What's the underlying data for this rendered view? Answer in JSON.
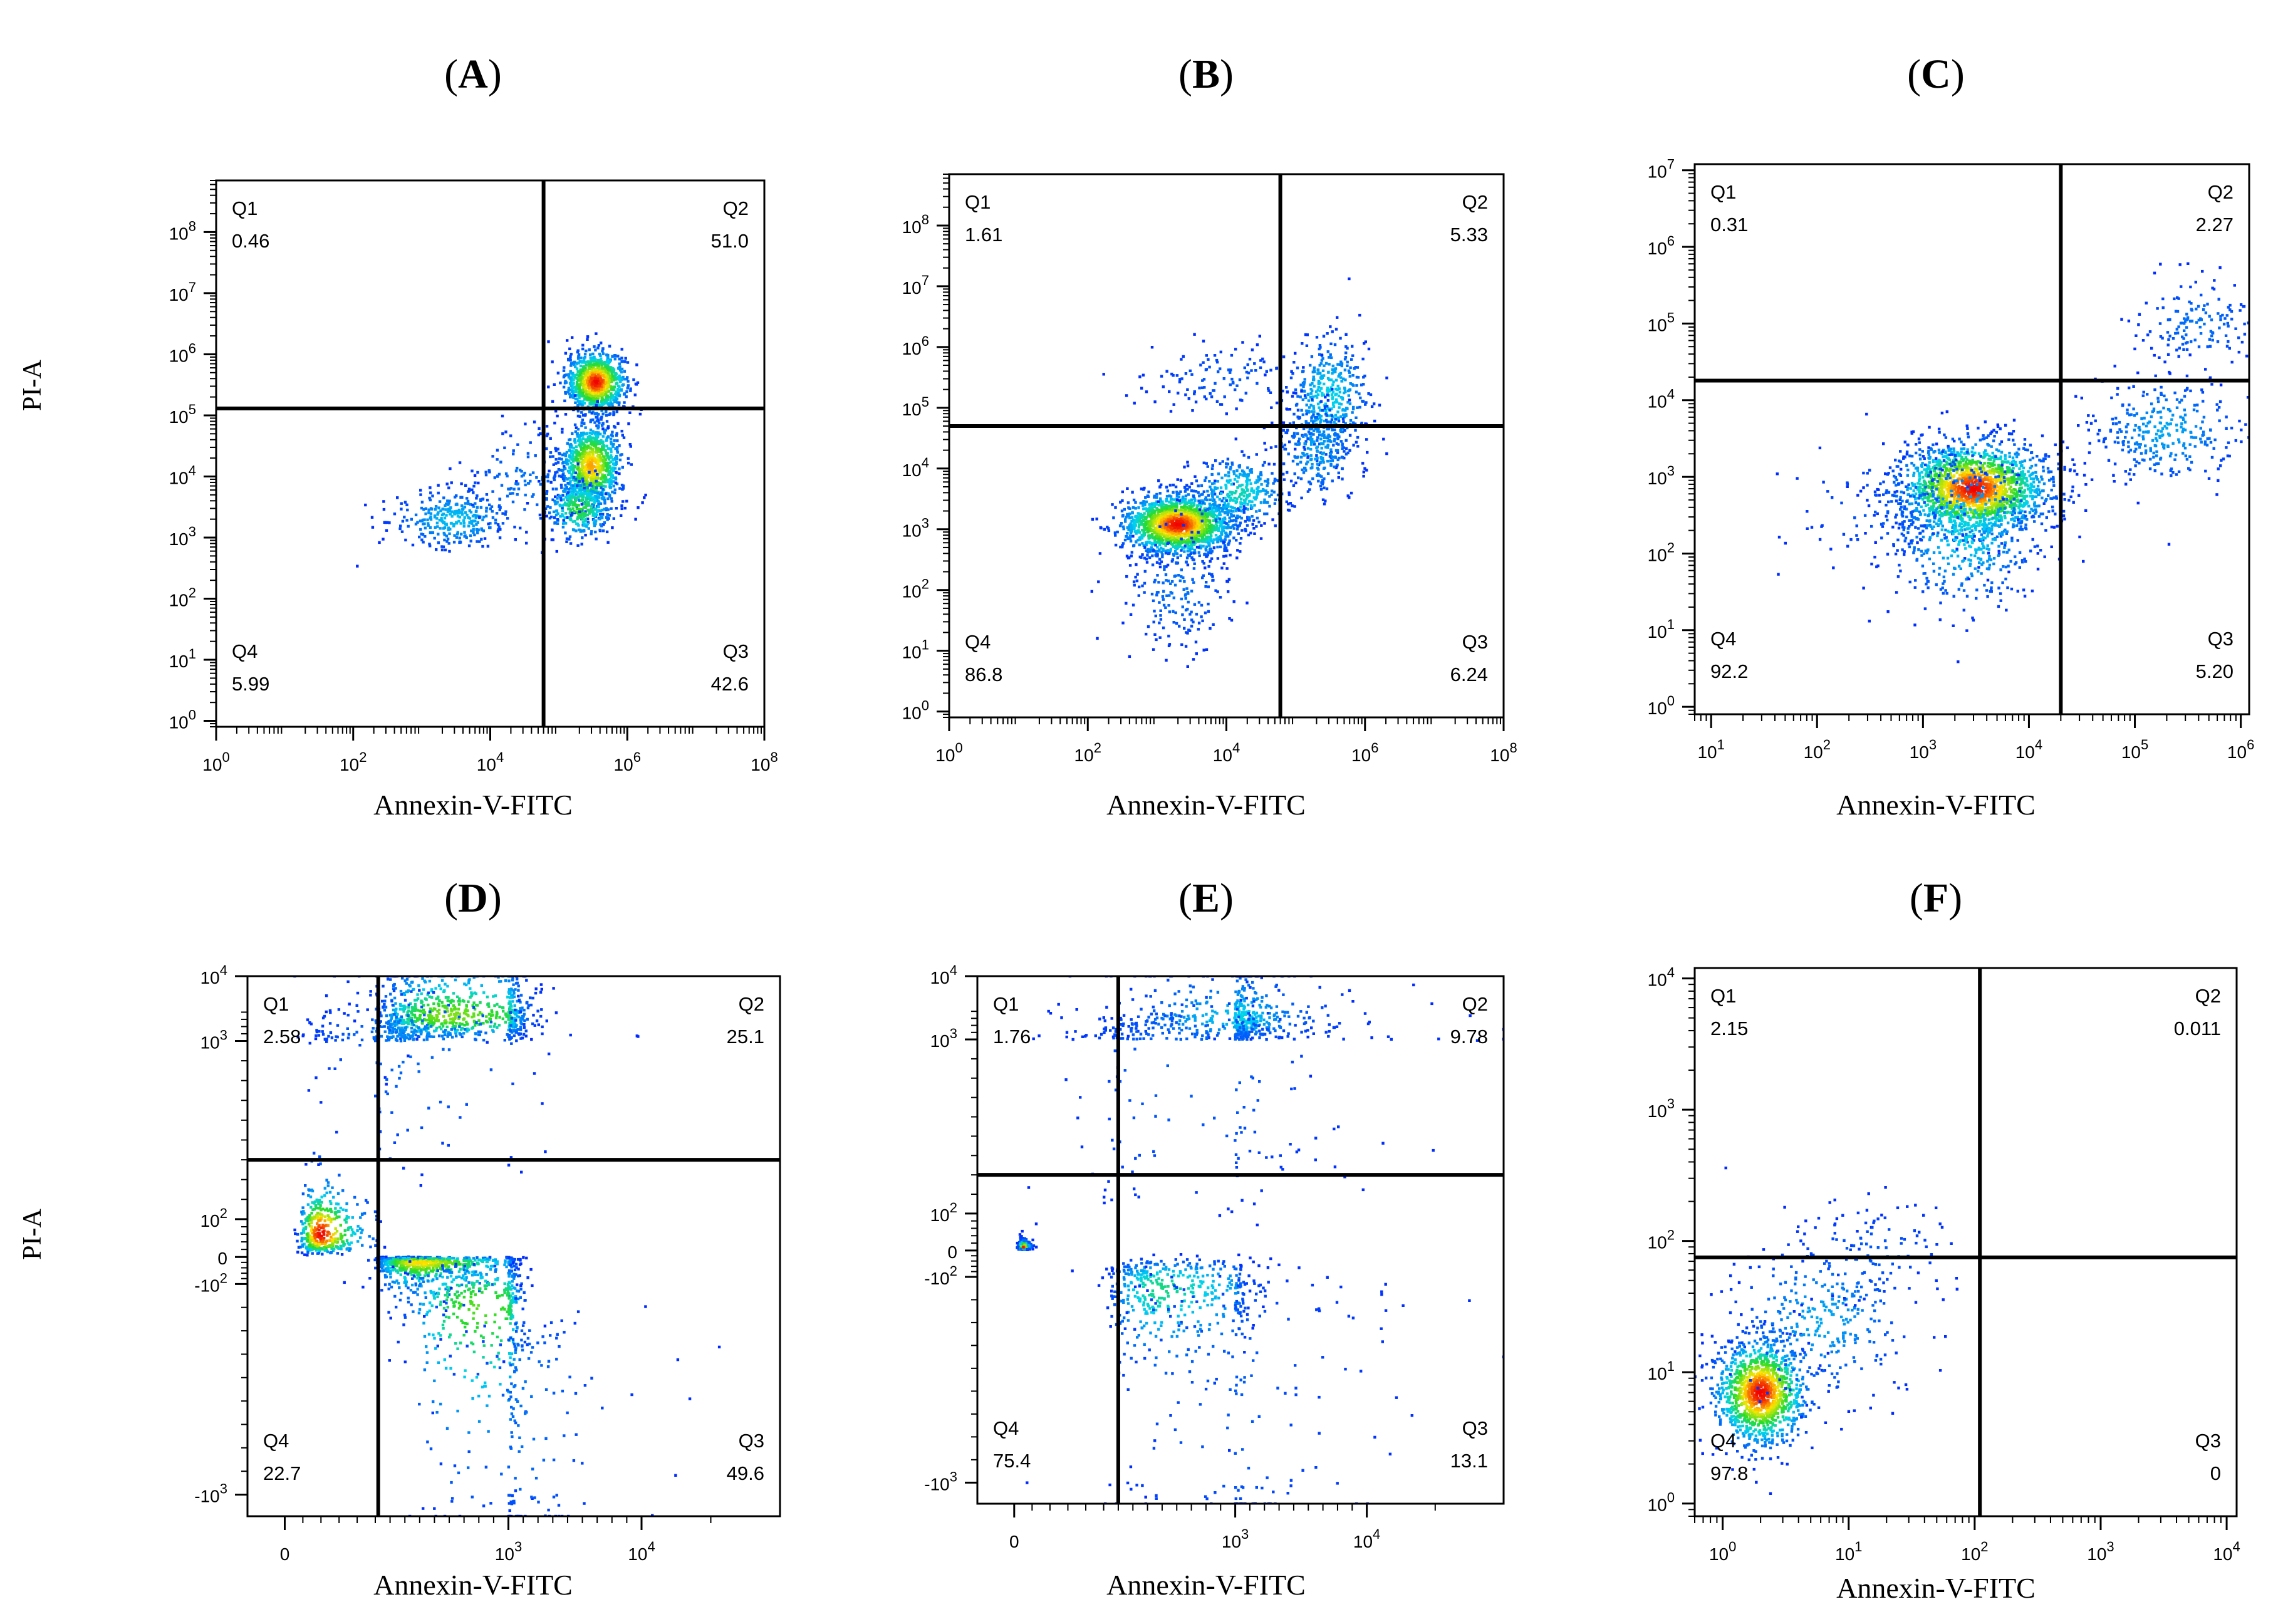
{
  "figure": {
    "shared_x_label": "Annexin-V-FITC",
    "shared_y_label": "PI-A"
  },
  "chart_data": [
    {
      "id": "A",
      "type": "scatter",
      "title": "(A)",
      "title_letter": "A",
      "xlabel": "Annexin-V-FITC",
      "ylabel": "PI-A",
      "x_scale": "log",
      "y_scale": "log",
      "xlim": [
        1,
        100000000
      ],
      "ylim": [
        0.8,
        700000000
      ],
      "x_ticks": [
        {
          "v": 1,
          "m": "10",
          "e": "0"
        },
        {
          "v": 100,
          "m": "10",
          "e": "2"
        },
        {
          "v": 10000,
          "m": "10",
          "e": "4"
        },
        {
          "v": 1000000,
          "m": "10",
          "e": "6"
        },
        {
          "v": 100000000,
          "m": "10",
          "e": "8"
        }
      ],
      "y_ticks": [
        {
          "v": 1,
          "m": "10",
          "e": "0"
        },
        {
          "v": 10,
          "m": "10",
          "e": "1"
        },
        {
          "v": 100,
          "m": "10",
          "e": "2"
        },
        {
          "v": 1000,
          "m": "10",
          "e": "3"
        },
        {
          "v": 10000,
          "m": "10",
          "e": "4"
        },
        {
          "v": 100000,
          "m": "10",
          "e": "5"
        },
        {
          "v": 1000000,
          "m": "10",
          "e": "6"
        },
        {
          "v": 10000000,
          "m": "10",
          "e": "7"
        },
        {
          "v": 100000000,
          "m": "10",
          "e": "8"
        }
      ],
      "gate": {
        "x": 60000,
        "y": 130000
      },
      "quadrants": [
        {
          "name": "Q1",
          "value": "0.46"
        },
        {
          "name": "Q2",
          "value": "51.0"
        },
        {
          "name": "Q3",
          "value": "42.6"
        },
        {
          "name": "Q4",
          "value": "5.99"
        }
      ],
      "clusters": [
        {
          "x": 350000,
          "y": 350000,
          "sx": 0.22,
          "sy": 0.25,
          "n": 900,
          "d": 1.0
        },
        {
          "x": 300000,
          "y": 15000,
          "sx": 0.22,
          "sy": 0.35,
          "n": 900,
          "d": 0.85
        },
        {
          "x": 200000,
          "y": 3000,
          "sx": 0.25,
          "sy": 0.25,
          "n": 300,
          "d": 0.55
        },
        {
          "x": 3000,
          "y": 2000,
          "sx": 0.45,
          "sy": 0.25,
          "n": 300,
          "d": 0.3
        },
        {
          "x": 30000,
          "y": 8000,
          "sx": 0.5,
          "sy": 0.5,
          "n": 150,
          "d": 0.15
        }
      ]
    },
    {
      "id": "B",
      "type": "scatter",
      "title": "(B)",
      "title_letter": "B",
      "xlabel": "Annexin-V-FITC",
      "ylabel": "PI-A",
      "x_scale": "log",
      "y_scale": "log",
      "xlim": [
        1,
        100000000
      ],
      "ylim": [
        0.8,
        700000000
      ],
      "x_ticks": [
        {
          "v": 1,
          "m": "10",
          "e": "0"
        },
        {
          "v": 100,
          "m": "10",
          "e": "2"
        },
        {
          "v": 10000,
          "m": "10",
          "e": "4"
        },
        {
          "v": 1000000,
          "m": "10",
          "e": "6"
        },
        {
          "v": 100000000,
          "m": "10",
          "e": "8"
        }
      ],
      "y_ticks": [
        {
          "v": 1,
          "m": "10",
          "e": "0"
        },
        {
          "v": 10,
          "m": "10",
          "e": "1"
        },
        {
          "v": 100,
          "m": "10",
          "e": "2"
        },
        {
          "v": 1000,
          "m": "10",
          "e": "3"
        },
        {
          "v": 10000,
          "m": "10",
          "e": "4"
        },
        {
          "v": 100000,
          "m": "10",
          "e": "5"
        },
        {
          "v": 1000000,
          "m": "10",
          "e": "6"
        },
        {
          "v": 10000000,
          "m": "10",
          "e": "7"
        },
        {
          "v": 100000000,
          "m": "10",
          "e": "8"
        }
      ],
      "gate": {
        "x": 60000,
        "y": 50000
      },
      "quadrants": [
        {
          "name": "Q1",
          "value": "1.61"
        },
        {
          "name": "Q2",
          "value": "5.33"
        },
        {
          "name": "Q3",
          "value": "6.24"
        },
        {
          "name": "Q4",
          "value": "86.8"
        }
      ],
      "clusters": [
        {
          "x": 2000,
          "y": 1200,
          "sx": 0.4,
          "sy": 0.25,
          "n": 1600,
          "d": 1.0
        },
        {
          "x": 15000,
          "y": 4000,
          "sx": 0.35,
          "sy": 0.3,
          "n": 300,
          "d": 0.4
        },
        {
          "x": 300000,
          "y": 150000,
          "sx": 0.3,
          "sy": 0.5,
          "n": 400,
          "d": 0.35
        },
        {
          "x": 200000,
          "y": 20000,
          "sx": 0.3,
          "sy": 0.4,
          "n": 250,
          "d": 0.25
        },
        {
          "x": 2000,
          "y": 100,
          "sx": 0.4,
          "sy": 0.5,
          "n": 200,
          "d": 0.15
        },
        {
          "x": 10000,
          "y": 300000,
          "sx": 0.6,
          "sy": 0.3,
          "n": 120,
          "d": 0.1
        }
      ]
    },
    {
      "id": "C",
      "type": "scatter",
      "title": "(C)",
      "title_letter": "C",
      "xlabel": "Annexin-V-FITC",
      "ylabel": "PI-A",
      "x_scale": "log",
      "y_scale": "log",
      "xlim": [
        7,
        1200000
      ],
      "ylim": [
        0.8,
        12000000
      ],
      "x_ticks": [
        {
          "v": 10,
          "m": "10",
          "e": "1"
        },
        {
          "v": 100,
          "m": "10",
          "e": "2"
        },
        {
          "v": 1000,
          "m": "10",
          "e": "3"
        },
        {
          "v": 10000,
          "m": "10",
          "e": "4"
        },
        {
          "v": 100000,
          "m": "10",
          "e": "5"
        },
        {
          "v": 1000000,
          "m": "10",
          "e": "6"
        }
      ],
      "y_ticks": [
        {
          "v": 1,
          "m": "10",
          "e": "0"
        },
        {
          "v": 10,
          "m": "10",
          "e": "1"
        },
        {
          "v": 100,
          "m": "10",
          "e": "2"
        },
        {
          "v": 1000,
          "m": "10",
          "e": "3"
        },
        {
          "v": 10000,
          "m": "10",
          "e": "4"
        },
        {
          "v": 100000,
          "m": "10",
          "e": "5"
        },
        {
          "v": 1000000,
          "m": "10",
          "e": "6"
        },
        {
          "v": 10000000,
          "m": "10",
          "e": "7"
        }
      ],
      "gate": {
        "x": 20000,
        "y": 18000
      },
      "quadrants": [
        {
          "name": "Q1",
          "value": "0.31"
        },
        {
          "name": "Q2",
          "value": "2.27"
        },
        {
          "name": "Q3",
          "value": "5.20"
        },
        {
          "name": "Q4",
          "value": "92.2"
        }
      ],
      "clusters": [
        {
          "x": 3000,
          "y": 700,
          "sx": 0.35,
          "sy": 0.3,
          "n": 1800,
          "d": 1.0
        },
        {
          "x": 2500,
          "y": 200,
          "sx": 0.35,
          "sy": 0.5,
          "n": 500,
          "d": 0.35
        },
        {
          "x": 200000,
          "y": 4000,
          "sx": 0.35,
          "sy": 0.35,
          "n": 300,
          "d": 0.25
        },
        {
          "x": 400000,
          "y": 100000,
          "sx": 0.3,
          "sy": 0.3,
          "n": 150,
          "d": 0.15
        },
        {
          "x": 500,
          "y": 400,
          "sx": 0.5,
          "sy": 0.4,
          "n": 120,
          "d": 0.1
        }
      ]
    },
    {
      "id": "D",
      "type": "scatter",
      "title": "(D)",
      "title_letter": "D",
      "xlabel": "Annexin-V-FITC",
      "ylabel": "PI-A",
      "x_scale": "biexponential",
      "y_scale": "biexponential",
      "x_ticks": [
        {
          "v": 0,
          "m": "0",
          "e": ""
        },
        {
          "v": 1000,
          "m": "10",
          "e": "3"
        },
        {
          "v": 10000,
          "m": "10",
          "e": "4"
        }
      ],
      "y_ticks": [
        {
          "v": -1000,
          "m": "-10",
          "e": "3"
        },
        {
          "v": -100,
          "m": "-10",
          "e": "2"
        },
        {
          "v": 0,
          "m": "0",
          "e": ""
        },
        {
          "v": 100,
          "m": "10",
          "e": "2"
        },
        {
          "v": 1000,
          "m": "10",
          "e": "3"
        },
        {
          "v": 10000,
          "m": "10",
          "e": "4"
        }
      ],
      "gate": {
        "x": 120,
        "y": 400
      },
      "quadrants": [
        {
          "name": "Q1",
          "value": "2.58"
        },
        {
          "name": "Q2",
          "value": "25.1"
        },
        {
          "name": "Q3",
          "value": "49.6"
        },
        {
          "name": "Q4",
          "value": "22.7"
        }
      ],
      "clusters": [
        {
          "x": 40,
          "y": 60,
          "sx": 0.18,
          "sy": 0.35,
          "n": 400,
          "d": 1.0
        },
        {
          "x": 400,
          "y": -20,
          "sx": 0.25,
          "sy": 0.45,
          "n": 700,
          "d": 0.8
        },
        {
          "x": 800,
          "y": -200,
          "sx": 0.2,
          "sy": 0.35,
          "n": 400,
          "d": 0.6
        },
        {
          "x": 600,
          "y": 4500,
          "sx": 0.3,
          "sy": 0.22,
          "n": 700,
          "d": 0.65
        },
        {
          "x": 300,
          "y": 2000,
          "sx": 0.5,
          "sy": 0.35,
          "n": 300,
          "d": 0.2
        },
        {
          "x": 2000,
          "y": -600,
          "sx": 0.35,
          "sy": 0.3,
          "n": 150,
          "d": 0.15
        }
      ]
    },
    {
      "id": "E",
      "type": "scatter",
      "title": "(E)",
      "title_letter": "E",
      "xlabel": "Annexin-V-FITC",
      "ylabel": "PI-A",
      "x_scale": "biexponential",
      "y_scale": "biexponential",
      "x_ticks": [
        {
          "v": 0,
          "m": "0",
          "e": ""
        },
        {
          "v": 1000,
          "m": "10",
          "e": "3"
        },
        {
          "v": 10000,
          "m": "10",
          "e": "4"
        }
      ],
      "y_ticks": [
        {
          "v": -1000,
          "m": "-10",
          "e": "3"
        },
        {
          "v": -100,
          "m": "-10",
          "e": "2"
        },
        {
          "v": 0,
          "m": "0",
          "e": ""
        },
        {
          "v": 100,
          "m": "10",
          "e": "2"
        },
        {
          "v": 1000,
          "m": "10",
          "e": "3"
        },
        {
          "v": 10000,
          "m": "10",
          "e": "4"
        }
      ],
      "gate": {
        "x": 200,
        "y": 300
      },
      "quadrants": [
        {
          "name": "Q1",
          "value": "1.76"
        },
        {
          "name": "Q2",
          "value": "9.78"
        },
        {
          "name": "Q3",
          "value": "13.1"
        },
        {
          "name": "Q4",
          "value": "75.4"
        }
      ],
      "clusters": [
        {
          "x": 10,
          "y": 10,
          "sx": 0.12,
          "sy": 0.2,
          "n": 600,
          "d": 1.0
        },
        {
          "x": 500,
          "y": -150,
          "sx": 0.25,
          "sy": 0.3,
          "n": 400,
          "d": 0.45
        },
        {
          "x": 1500,
          "y": 4000,
          "sx": 0.35,
          "sy": 0.25,
          "n": 400,
          "d": 0.35
        },
        {
          "x": 800,
          "y": 1500,
          "sx": 0.6,
          "sy": 0.5,
          "n": 300,
          "d": 0.12
        },
        {
          "x": 1500,
          "y": -500,
          "sx": 0.5,
          "sy": 0.5,
          "n": 200,
          "d": 0.1
        }
      ]
    },
    {
      "id": "F",
      "type": "scatter",
      "title": "(F)",
      "title_letter": "F",
      "xlabel": "Annexin-V-FITC",
      "ylabel": "PI-A",
      "x_scale": "log",
      "y_scale": "log",
      "xlim": [
        0.6,
        12000
      ],
      "ylim": [
        0.8,
        12000
      ],
      "x_ticks": [
        {
          "v": 1,
          "m": "10",
          "e": "0"
        },
        {
          "v": 10,
          "m": "10",
          "e": "1"
        },
        {
          "v": 100,
          "m": "10",
          "e": "2"
        },
        {
          "v": 1000,
          "m": "10",
          "e": "3"
        },
        {
          "v": 10000,
          "m": "10",
          "e": "4"
        }
      ],
      "y_ticks": [
        {
          "v": 1,
          "m": "10",
          "e": "0"
        },
        {
          "v": 10,
          "m": "10",
          "e": "1"
        },
        {
          "v": 100,
          "m": "10",
          "e": "2"
        },
        {
          "v": 1000,
          "m": "10",
          "e": "3"
        },
        {
          "v": 10000,
          "m": "10",
          "e": "4"
        }
      ],
      "gate": {
        "x": 110,
        "y": 75
      },
      "quadrants": [
        {
          "name": "Q1",
          "value": "2.15"
        },
        {
          "name": "Q2",
          "value": "0.011"
        },
        {
          "name": "Q3",
          "value": "0"
        },
        {
          "name": "Q4",
          "value": "97.8"
        }
      ],
      "clusters": [
        {
          "x": 2,
          "y": 7,
          "sx": 0.18,
          "sy": 0.2,
          "n": 1200,
          "d": 1.0
        },
        {
          "x": 6,
          "y": 25,
          "sx": 0.35,
          "sy": 0.3,
          "n": 300,
          "d": 0.25
        },
        {
          "x": 15,
          "y": 80,
          "sx": 0.35,
          "sy": 0.2,
          "n": 100,
          "d": 0.1
        }
      ]
    }
  ]
}
